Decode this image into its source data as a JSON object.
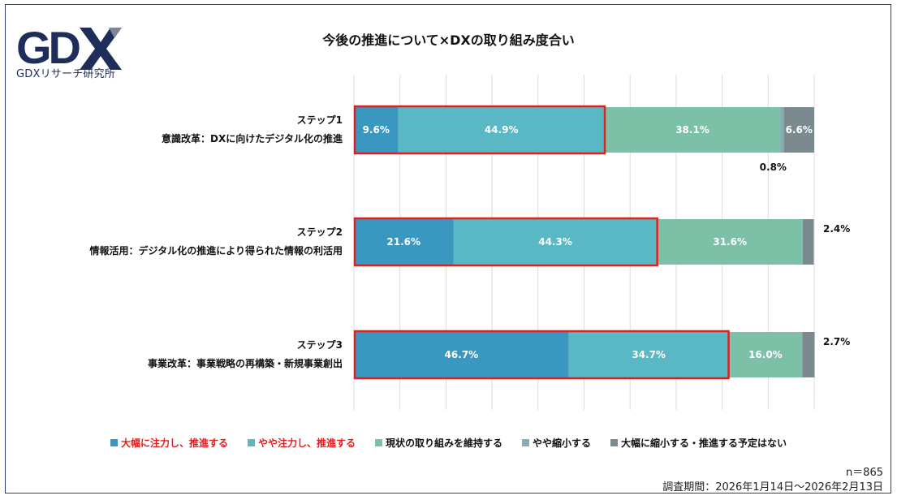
{
  "logo": {
    "text": "GDX",
    "caption": "GDXリサーチ研究所",
    "colors": {
      "dark": "#1f2d5a",
      "light": "#7d8699"
    }
  },
  "footer": {
    "n": "n＝865",
    "period": "調査期間：2026年1月14日〜2026年2月13日"
  },
  "chart_data": {
    "type": "bar",
    "orientation": "horizontal",
    "stacked": true,
    "title": "今後の推進について×DXの取り組み度合い",
    "categories": [
      {
        "step": "ステップ1",
        "name": "意識改革：DXに向けたデジタル化の推進"
      },
      {
        "step": "ステップ2",
        "name": "情報活用：デジタル化の推進により得られた情報の利活用"
      },
      {
        "step": "ステップ3",
        "name": "事業改革：事業戦略の再構築・新規事業創出"
      }
    ],
    "series": [
      {
        "name": "大幅に注力し、推進する",
        "color": "#3a97c0",
        "legend_text_color": "#e02020",
        "values": [
          9.6,
          21.6,
          46.7
        ]
      },
      {
        "name": "やや注力し、推進する",
        "color": "#5ab8c4",
        "legend_text_color": "#e02020",
        "values": [
          44.9,
          44.3,
          34.7
        ]
      },
      {
        "name": "現状の取り組みを維持する",
        "color": "#7cc0a7",
        "legend_text_color": "#111111",
        "values": [
          38.1,
          31.6,
          16.0
        ]
      },
      {
        "name": "やや縮小する",
        "color": "#8aacb8",
        "legend_text_color": "#111111",
        "values": [
          0.8,
          0.0,
          0.0
        ]
      },
      {
        "name": "大幅に縮小する・推進する予定はない",
        "color": "#7b8a8e",
        "legend_text_color": "#111111",
        "values": [
          6.6,
          2.4,
          2.7
        ]
      }
    ],
    "labels": [
      [
        "9.6%",
        "44.9%",
        "38.1%",
        "0.8%",
        "6.6%"
      ],
      [
        "21.6%",
        "44.3%",
        "31.6%",
        "",
        "2.4%"
      ],
      [
        "46.7%",
        "34.7%",
        "16.0%",
        "",
        "2.7%"
      ]
    ],
    "highlight": {
      "series_count": 2,
      "color": "#e02020"
    },
    "xlim": [
      0,
      100
    ],
    "grid": true,
    "legend_position": "bottom"
  }
}
